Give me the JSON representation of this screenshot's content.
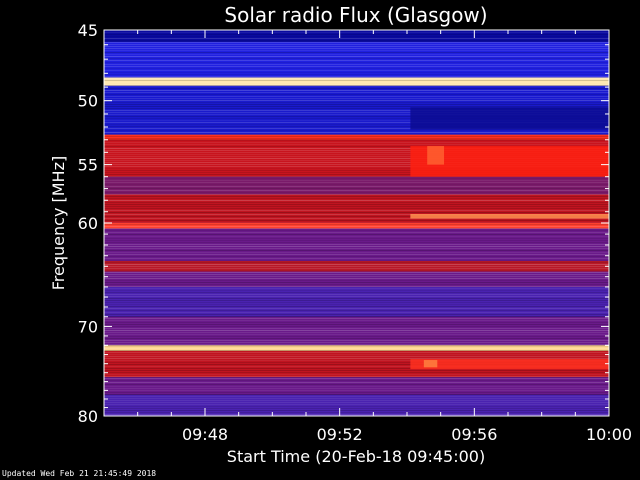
{
  "chart_data": {
    "type": "heatmap",
    "title": "Solar radio Flux (Glasgow)",
    "xlabel": "Start Time (20-Feb-18 09:45:00)",
    "ylabel": "Frequency [MHz]",
    "xlim": [
      "09:45",
      "10:00"
    ],
    "ylim": [
      45,
      80
    ],
    "x_ticks": [
      "09:48",
      "09:52",
      "09:56",
      "10:00"
    ],
    "x_tick_minutes": [
      3,
      7,
      11,
      15
    ],
    "y_ticks": [
      45,
      50,
      55,
      60,
      70,
      80
    ],
    "y_scale": "log",
    "colormap": [
      "#1a0080",
      "#2a10c0",
      "#3c2cff",
      "#b01030",
      "#e01018",
      "#ff7030",
      "#ffe0a0"
    ],
    "bands": [
      {
        "from_mhz": 45.0,
        "to_mhz": 45.8,
        "color": "#0a0aa0"
      },
      {
        "from_mhz": 45.8,
        "to_mhz": 48.3,
        "color": "#2020e0"
      },
      {
        "from_mhz": 48.3,
        "to_mhz": 48.9,
        "color": "#ffe8b0"
      },
      {
        "from_mhz": 48.9,
        "to_mhz": 49.8,
        "color": "#1818d0"
      },
      {
        "from_mhz": 49.8,
        "to_mhz": 52.6,
        "color": "#1a1acc"
      },
      {
        "from_mhz": 52.6,
        "to_mhz": 53.0,
        "color": "#ff3020"
      },
      {
        "from_mhz": 53.0,
        "to_mhz": 56.0,
        "color": "#c8141e"
      },
      {
        "from_mhz": 56.0,
        "to_mhz": 57.5,
        "color": "#7a1a6a"
      },
      {
        "from_mhz": 57.5,
        "to_mhz": 60.0,
        "color": "#c01420"
      },
      {
        "from_mhz": 60.0,
        "to_mhz": 60.5,
        "color": "#ff4030"
      },
      {
        "from_mhz": 60.5,
        "to_mhz": 63.5,
        "color": "#6a1a8a"
      },
      {
        "from_mhz": 63.5,
        "to_mhz": 64.5,
        "color": "#b81828"
      },
      {
        "from_mhz": 64.5,
        "to_mhz": 66.0,
        "color": "#6a1a8a"
      },
      {
        "from_mhz": 66.0,
        "to_mhz": 69.0,
        "color": "#4a22b0"
      },
      {
        "from_mhz": 69.0,
        "to_mhz": 72.0,
        "color": "#6a1a8a"
      },
      {
        "from_mhz": 72.0,
        "to_mhz": 72.6,
        "color": "#ffd890"
      },
      {
        "from_mhz": 72.6,
        "to_mhz": 75.5,
        "color": "#c01420"
      },
      {
        "from_mhz": 75.5,
        "to_mhz": 77.5,
        "color": "#6a1a8a"
      },
      {
        "from_mhz": 77.5,
        "to_mhz": 80.0,
        "color": "#4a22b0"
      }
    ],
    "features": [
      {
        "start_min": 9.1,
        "end_min": 15.0,
        "from_mhz": 53.5,
        "to_mhz": 56.0,
        "color": "#ff2010"
      },
      {
        "start_min": 9.6,
        "end_min": 10.1,
        "from_mhz": 53.5,
        "to_mhz": 55.0,
        "color": "#ff6030"
      },
      {
        "start_min": 9.1,
        "end_min": 15.0,
        "from_mhz": 59.2,
        "to_mhz": 59.6,
        "color": "#ff9050"
      },
      {
        "start_min": 9.1,
        "end_min": 15.0,
        "from_mhz": 73.5,
        "to_mhz": 74.6,
        "color": "#ff3020"
      },
      {
        "start_min": 9.5,
        "end_min": 9.9,
        "from_mhz": 73.6,
        "to_mhz": 74.4,
        "color": "#ff8040"
      },
      {
        "start_min": 9.1,
        "end_min": 15.0,
        "from_mhz": 50.5,
        "to_mhz": 52.2,
        "color": "#0c0c90"
      }
    ],
    "updated_text": "Updated Wed Feb 21 21:45:49 2018"
  }
}
